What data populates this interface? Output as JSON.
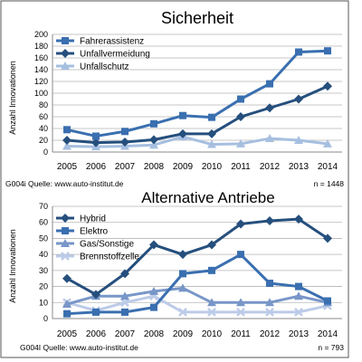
{
  "chart_data": [
    {
      "type": "line",
      "title": "Sicherheit",
      "ylabel": "Anzahl Innovationen",
      "xlabel": "",
      "categories": [
        "2005",
        "2006",
        "2007",
        "2008",
        "2009",
        "2010",
        "2011",
        "2012",
        "2013",
        "2014"
      ],
      "ylim": [
        0,
        200
      ],
      "yticks": [
        0,
        20,
        40,
        60,
        80,
        100,
        120,
        140,
        160,
        180,
        200
      ],
      "grid": true,
      "legend": "top-left",
      "series": [
        {
          "name": "Fahrerassistenz",
          "color": "#3a6fb0",
          "marker": "square",
          "values": [
            38,
            27,
            35,
            48,
            62,
            59,
            90,
            116,
            170,
            172
          ]
        },
        {
          "name": "Unfallvermeidung",
          "color": "#254f7d",
          "marker": "diamond",
          "values": [
            20,
            16,
            17,
            21,
            31,
            31,
            60,
            75,
            90,
            112
          ]
        },
        {
          "name": "Unfallschutz",
          "color": "#a6bfe0",
          "marker": "triangle",
          "values": [
            10,
            9,
            10,
            12,
            26,
            13,
            14,
            23,
            20,
            14
          ]
        }
      ],
      "source": "G004i  Quelle: www.auto-institut.de",
      "note": "n = 1448"
    },
    {
      "type": "line",
      "title": "Alternative Antriebe",
      "ylabel": "Anzahl Innovationen",
      "xlabel": "",
      "categories": [
        "2005",
        "2006",
        "2007",
        "2008",
        "2009",
        "2010",
        "2011",
        "2012",
        "2013",
        "2014"
      ],
      "ylim": [
        0,
        70
      ],
      "yticks": [
        0,
        10,
        20,
        30,
        40,
        50,
        60,
        70
      ],
      "grid": true,
      "legend": "top-left",
      "series": [
        {
          "name": "Hybrid",
          "color": "#254f7d",
          "marker": "diamond",
          "values": [
            25,
            15,
            28,
            46,
            40,
            46,
            59,
            61,
            62,
            50
          ]
        },
        {
          "name": "Elektro",
          "color": "#3a6fb0",
          "marker": "square",
          "values": [
            3,
            4,
            4,
            7,
            28,
            30,
            40,
            22,
            20,
            11
          ]
        },
        {
          "name": "Gas/Sonstige",
          "color": "#7896c8",
          "marker": "triangle",
          "values": [
            9,
            14,
            14,
            17,
            19,
            10,
            10,
            10,
            14,
            10
          ]
        },
        {
          "name": "Brennstoffzelle",
          "color": "#bccbe8",
          "marker": "cross",
          "values": [
            10,
            5,
            10,
            14,
            4,
            4,
            4,
            4,
            4,
            8
          ]
        }
      ],
      "source": "G004I  Quelle: www.auto-institut.de",
      "note": "n = 793"
    }
  ]
}
